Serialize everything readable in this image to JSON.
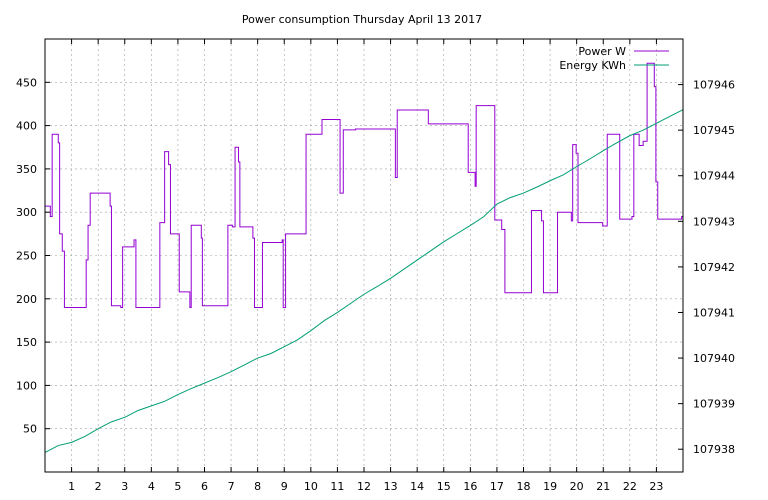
{
  "chart_data": {
    "type": "line",
    "title": "Power consumption Thursday April 13 2017",
    "x": {
      "ticks": [
        1,
        2,
        3,
        4,
        5,
        6,
        7,
        8,
        9,
        10,
        11,
        12,
        13,
        14,
        15,
        16,
        17,
        18,
        19,
        20,
        21,
        22,
        23
      ],
      "range": [
        0,
        24
      ]
    },
    "y_left": {
      "ticks": [
        50,
        100,
        150,
        200,
        250,
        300,
        350,
        400,
        450
      ],
      "range": [
        0,
        500
      ]
    },
    "y_right": {
      "ticks": [
        107938,
        107939,
        107940,
        107941,
        107942,
        107943,
        107944,
        107945,
        107946
      ],
      "range": [
        107937.5,
        107947
      ]
    },
    "grid": true,
    "legend_position": "top-right",
    "series": [
      {
        "name": "Power W",
        "axis": "left",
        "color": "#9400d3",
        "style": "steps",
        "points": [
          [
            0.0,
            307
          ],
          [
            0.2,
            295
          ],
          [
            0.27,
            390
          ],
          [
            0.5,
            380
          ],
          [
            0.55,
            275
          ],
          [
            0.65,
            255
          ],
          [
            0.73,
            190
          ],
          [
            1.55,
            245
          ],
          [
            1.62,
            285
          ],
          [
            1.7,
            322
          ],
          [
            2.45,
            307
          ],
          [
            2.5,
            192
          ],
          [
            2.85,
            190
          ],
          [
            2.92,
            260
          ],
          [
            3.35,
            268
          ],
          [
            3.42,
            190
          ],
          [
            4.32,
            288
          ],
          [
            4.5,
            370
          ],
          [
            4.65,
            355
          ],
          [
            4.72,
            275
          ],
          [
            5.05,
            208
          ],
          [
            5.45,
            190
          ],
          [
            5.5,
            285
          ],
          [
            5.88,
            270
          ],
          [
            5.92,
            192
          ],
          [
            6.88,
            285
          ],
          [
            7.05,
            283
          ],
          [
            7.15,
            375
          ],
          [
            7.28,
            358
          ],
          [
            7.33,
            283
          ],
          [
            7.82,
            270
          ],
          [
            7.88,
            190
          ],
          [
            8.18,
            265
          ],
          [
            8.92,
            268
          ],
          [
            8.96,
            190
          ],
          [
            9.05,
            275
          ],
          [
            9.82,
            390
          ],
          [
            10.42,
            407
          ],
          [
            11.1,
            322
          ],
          [
            11.22,
            395
          ],
          [
            11.68,
            396
          ],
          [
            13.18,
            340
          ],
          [
            13.25,
            418
          ],
          [
            14.42,
            402
          ],
          [
            15.92,
            346
          ],
          [
            16.18,
            330
          ],
          [
            16.22,
            423
          ],
          [
            16.92,
            291
          ],
          [
            17.18,
            280
          ],
          [
            17.3,
            207
          ],
          [
            18.3,
            302
          ],
          [
            18.68,
            290
          ],
          [
            18.75,
            207
          ],
          [
            19.28,
            300
          ],
          [
            19.8,
            290
          ],
          [
            19.85,
            378
          ],
          [
            19.98,
            368
          ],
          [
            20.05,
            288
          ],
          [
            20.98,
            284
          ],
          [
            21.15,
            390
          ],
          [
            21.62,
            292
          ],
          [
            22.08,
            295
          ],
          [
            22.15,
            390
          ],
          [
            22.35,
            377
          ],
          [
            22.5,
            382
          ],
          [
            22.65,
            472
          ],
          [
            22.92,
            445
          ],
          [
            22.98,
            335
          ],
          [
            23.05,
            292
          ],
          [
            23.95,
            295
          ]
        ]
      },
      {
        "name": "Energy KWh",
        "axis": "right",
        "color": "#009e73",
        "style": "line",
        "points": [
          [
            0.0,
            107937.93
          ],
          [
            0.5,
            107938.08
          ],
          [
            1.0,
            107938.15
          ],
          [
            1.5,
            107938.28
          ],
          [
            2.0,
            107938.45
          ],
          [
            2.5,
            107938.6
          ],
          [
            3.0,
            107938.7
          ],
          [
            3.5,
            107938.85
          ],
          [
            4.0,
            107938.95
          ],
          [
            4.5,
            107939.05
          ],
          [
            5.0,
            107939.2
          ],
          [
            5.5,
            107939.33
          ],
          [
            6.0,
            107939.45
          ],
          [
            6.5,
            107939.57
          ],
          [
            7.0,
            107939.7
          ],
          [
            7.5,
            107939.85
          ],
          [
            8.0,
            107940.0
          ],
          [
            8.5,
            107940.1
          ],
          [
            9.0,
            107940.25
          ],
          [
            9.5,
            107940.4
          ],
          [
            10.0,
            107940.6
          ],
          [
            10.5,
            107940.82
          ],
          [
            11.0,
            107941.0
          ],
          [
            11.5,
            107941.2
          ],
          [
            12.0,
            107941.4
          ],
          [
            12.5,
            107941.57
          ],
          [
            13.0,
            107941.75
          ],
          [
            13.5,
            107941.95
          ],
          [
            14.0,
            107942.15
          ],
          [
            14.5,
            107942.35
          ],
          [
            15.0,
            107942.55
          ],
          [
            15.5,
            107942.73
          ],
          [
            16.0,
            107942.91
          ],
          [
            16.5,
            107943.1
          ],
          [
            17.0,
            107943.38
          ],
          [
            17.5,
            107943.52
          ],
          [
            18.0,
            107943.62
          ],
          [
            18.5,
            107943.75
          ],
          [
            19.0,
            107943.89
          ],
          [
            19.5,
            107944.02
          ],
          [
            20.0,
            107944.2
          ],
          [
            20.5,
            107944.37
          ],
          [
            21.0,
            107944.55
          ],
          [
            21.5,
            107944.72
          ],
          [
            22.0,
            107944.88
          ],
          [
            22.5,
            107945.0
          ],
          [
            23.0,
            107945.15
          ],
          [
            23.5,
            107945.3
          ],
          [
            24.0,
            107945.45
          ]
        ]
      }
    ]
  }
}
